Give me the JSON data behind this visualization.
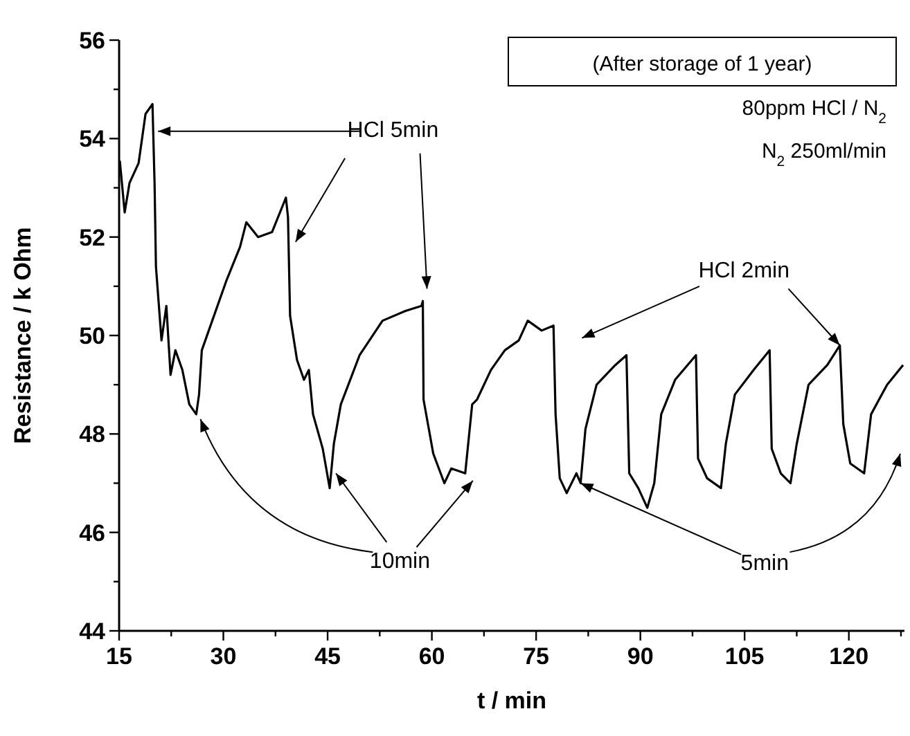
{
  "chart_data": {
    "type": "line",
    "xlabel": "t / min",
    "ylabel": "Resistance / k Ohm",
    "xlim": [
      15,
      128
    ],
    "ylim": [
      44,
      56
    ],
    "xticks": [
      15,
      {
        "value": 22.5,
        "label": null
      },
      30,
      {
        "value": 37.5,
        "label": null
      },
      45,
      {
        "value": 52.5,
        "label": null
      },
      60,
      {
        "value": 67.5,
        "label": null
      },
      75,
      {
        "value": 82.5,
        "label": null
      },
      90,
      {
        "value": 97.5,
        "label": null
      },
      105,
      {
        "value": 112.5,
        "label": null
      },
      120,
      {
        "value": 127.5,
        "label": null
      }
    ],
    "yticks": [
      44,
      {
        "value": 45,
        "label": null
      },
      46,
      {
        "value": 47,
        "label": null
      },
      48,
      {
        "value": 49,
        "label": null
      },
      50,
      {
        "value": 51,
        "label": null
      },
      52,
      {
        "value": 53,
        "label": null
      },
      54,
      {
        "value": 55,
        "label": null
      },
      56
    ],
    "grid": false,
    "marker": "none",
    "line_style": "solid",
    "annotations": [
      "(After storage of 1 year)",
      "80ppm HCl / N$_{2}$",
      "N$_{2}$ 250ml/min",
      {
        "text": "HCl 5min",
        "x": 20.6,
        "y": 54.15
      },
      {
        "text": "HCl 2min",
        "x": 118.7,
        "y": 49.8
      },
      {
        "text": "10min",
        "x": 26.7,
        "y": 48.3
      },
      {
        "text": "5min",
        "x": 81.4,
        "y": 47.0
      }
    ],
    "series": [
      {
        "color": "#000000",
        "x": [
          15.1,
          15.8,
          16.5,
          17.8,
          18.8,
          19.8,
          20.1,
          20.3,
          21.1,
          21.8,
          22.4,
          23.1,
          24.1,
          25.1,
          26.1,
          26.5,
          26.9,
          28.4,
          30.4,
          32.4,
          33.3,
          35.0,
          37.0,
          39.0,
          39.3,
          39.6,
          40.6,
          41.6,
          42.3,
          42.9,
          44.3,
          45.3,
          45.9,
          46.9,
          49.6,
          52.9,
          56.2,
          58.5,
          58.7,
          58.8,
          60.2,
          61.8,
          62.8,
          64.8,
          65.8,
          66.5,
          68.5,
          70.5,
          72.5,
          73.8,
          75.8,
          77.5,
          77.8,
          78.4,
          79.4,
          80.8,
          81.4,
          82.1,
          83.7,
          86.4,
          88.0,
          88.4,
          89.7,
          91.0,
          92.0,
          93.0,
          95.0,
          98.0,
          98.3,
          99.6,
          101.6,
          102.3,
          103.6,
          106.3,
          108.6,
          108.9,
          110.2,
          111.6,
          112.5,
          114.2,
          116.9,
          118.7,
          119.2,
          120.2,
          122.2,
          123.2,
          125.5,
          127.8
        ],
        "values": [
          53.55,
          52.5,
          53.1,
          53.5,
          54.5,
          54.7,
          53.1,
          51.4,
          49.9,
          50.6,
          49.2,
          49.7,
          49.3,
          48.6,
          48.4,
          48.8,
          49.7,
          50.3,
          51.1,
          51.8,
          52.3,
          52.0,
          52.1,
          52.8,
          52.4,
          50.4,
          49.5,
          49.1,
          49.3,
          48.4,
          47.7,
          46.9,
          47.8,
          48.6,
          49.6,
          50.3,
          50.5,
          50.6,
          50.7,
          48.7,
          47.6,
          47.0,
          47.3,
          47.2,
          48.6,
          48.7,
          49.3,
          49.7,
          49.9,
          50.3,
          50.1,
          50.2,
          48.4,
          47.1,
          46.8,
          47.2,
          47.0,
          48.1,
          49.0,
          49.4,
          49.6,
          47.2,
          46.9,
          46.5,
          47.0,
          48.4,
          49.1,
          49.6,
          47.5,
          47.1,
          46.9,
          47.8,
          48.8,
          49.3,
          49.7,
          47.7,
          47.2,
          47.0,
          47.8,
          49.0,
          49.4,
          49.8,
          48.2,
          47.4,
          47.2,
          48.4,
          49.0,
          49.4
        ]
      }
    ]
  }
}
